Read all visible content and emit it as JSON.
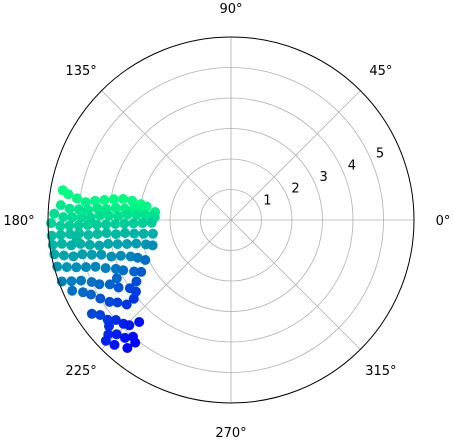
{
  "chart_data": {
    "type": "scatter",
    "projection": "polar",
    "grid": true,
    "rmax": 6,
    "theta_tick_labels": [
      "0°",
      "45°",
      "90°",
      "135°",
      "180°",
      "225°",
      "270°",
      "315°"
    ],
    "theta_tick_values_deg": [
      0,
      45,
      90,
      135,
      180,
      225,
      270,
      315
    ],
    "r_tick_labels": [
      "1",
      "2",
      "3",
      "4",
      "5"
    ],
    "r_tick_values": [
      1,
      2,
      3,
      4,
      5
    ],
    "colormap": "winter",
    "colormap_stops": [
      "#0000ff",
      "#00ff80"
    ],
    "point_color": "mapped to angle: bluer near 225°, greener near 180°",
    "series": [
      {
        "points_theta_deg_r": [
          [
            171,
            5.4
          ],
          [
            172,
            5.1
          ],
          [
            173,
            4.8
          ],
          [
            172,
            4.5
          ],
          [
            171,
            4.2
          ],
          [
            170,
            3.9
          ],
          [
            169,
            3.6
          ],
          [
            169,
            3.3
          ],
          [
            170,
            3.0
          ],
          [
            171,
            2.8
          ],
          [
            174,
            2.5
          ],
          [
            175,
            5.6
          ],
          [
            176,
            5.3
          ],
          [
            176,
            5.0
          ],
          [
            176,
            4.7
          ],
          [
            175,
            4.4
          ],
          [
            175,
            4.1
          ],
          [
            174,
            3.8
          ],
          [
            174,
            3.5
          ],
          [
            173,
            3.2
          ],
          [
            173,
            2.9
          ],
          [
            177,
            2.6
          ],
          [
            178,
            5.8
          ],
          [
            179,
            5.5
          ],
          [
            179,
            5.2
          ],
          [
            179,
            4.9
          ],
          [
            179,
            4.6
          ],
          [
            178,
            4.3
          ],
          [
            178,
            4.0
          ],
          [
            178,
            3.7
          ],
          [
            177,
            3.4
          ],
          [
            177,
            3.1
          ],
          [
            177,
            2.8
          ],
          [
            178,
            2.5
          ],
          [
            181,
            5.9
          ],
          [
            182,
            5.6
          ],
          [
            182,
            5.3
          ],
          [
            182,
            5.0
          ],
          [
            182,
            4.7
          ],
          [
            182,
            4.4
          ],
          [
            182,
            4.1
          ],
          [
            182,
            3.8
          ],
          [
            182,
            3.5
          ],
          [
            182,
            3.2
          ],
          [
            182,
            2.9
          ],
          [
            182,
            2.6
          ],
          [
            185,
            5.9
          ],
          [
            185,
            5.6
          ],
          [
            185,
            5.3
          ],
          [
            185,
            5.0
          ],
          [
            186,
            4.7
          ],
          [
            186,
            4.4
          ],
          [
            186,
            4.1
          ],
          [
            187,
            3.8
          ],
          [
            187,
            3.5
          ],
          [
            188,
            3.2
          ],
          [
            189,
            2.9
          ],
          [
            190,
            2.6
          ],
          [
            188,
            5.9
          ],
          [
            188,
            5.6
          ],
          [
            189,
            5.3
          ],
          [
            189,
            5.0
          ],
          [
            190,
            4.7
          ],
          [
            191,
            4.4
          ],
          [
            191,
            4.1
          ],
          [
            192,
            3.8
          ],
          [
            193,
            3.5
          ],
          [
            194,
            3.2
          ],
          [
            196,
            2.9
          ],
          [
            198,
            2.7
          ],
          [
            191,
            5.9
          ],
          [
            192,
            5.6
          ],
          [
            193,
            5.3
          ],
          [
            193,
            5.0
          ],
          [
            194,
            4.7
          ],
          [
            195,
            4.4
          ],
          [
            197,
            4.1
          ],
          [
            198,
            3.8
          ],
          [
            200,
            3.5
          ],
          [
            202,
            3.3
          ],
          [
            205,
            3.1
          ],
          [
            195,
            5.9
          ],
          [
            196,
            5.6
          ],
          [
            197,
            5.3
          ],
          [
            198,
            5.0
          ],
          [
            199,
            4.7
          ],
          [
            201,
            4.4
          ],
          [
            203,
            4.1
          ],
          [
            205,
            3.9
          ],
          [
            208,
            3.6
          ],
          [
            210,
            3.4
          ],
          [
            200,
            5.9
          ],
          [
            201,
            5.6
          ],
          [
            202,
            5.3
          ],
          [
            204,
            5.0
          ],
          [
            206,
            4.8
          ],
          [
            208,
            4.5
          ],
          [
            211,
            4.3
          ],
          [
            214,
            4.0
          ],
          [
            213,
            3.7
          ],
          [
            204,
            5.7
          ],
          [
            206,
            5.4
          ],
          [
            208,
            5.2
          ],
          [
            211,
            5.0
          ],
          [
            214,
            4.8
          ],
          [
            216,
            4.6
          ],
          [
            219,
            4.4
          ],
          [
            214,
            5.5
          ],
          [
            216,
            5.3
          ],
          [
            219,
            5.2
          ],
          [
            221,
            5.0
          ],
          [
            224,
            4.9
          ],
          [
            226,
            4.8
          ],
          [
            221,
            5.3
          ],
          [
            223,
            5.5
          ],
          [
            225,
            5.3
          ],
          [
            228,
            5.2
          ],
          [
            230,
            5.0
          ],
          [
            227,
            5.6
          ],
          [
            231,
            5.4
          ],
          [
            224,
            5.7
          ],
          [
            219,
            4.1
          ],
          [
            217,
            3.9
          ],
          [
            181,
            4.6
          ],
          [
            177,
            4.9
          ],
          [
            170,
            5.6
          ],
          [
            187,
            5.1
          ],
          [
            207,
            4.2
          ],
          [
            228,
            4.5
          ],
          [
            232,
            5.1
          ]
        ]
      }
    ]
  }
}
